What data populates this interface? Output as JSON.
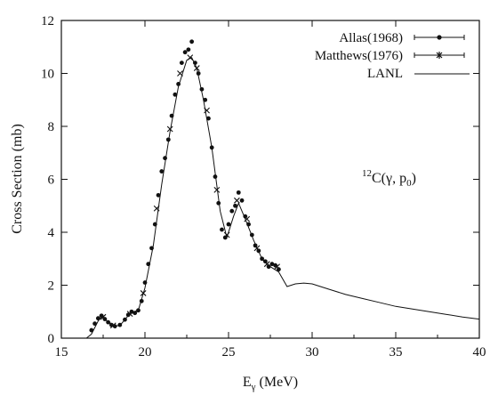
{
  "chart_data": {
    "type": "scatter",
    "xlabel": "E",
    "xlabel_sub": "γ",
    "xlabel_unit": " (MeV)",
    "ylabel": "Cross Section (mb)",
    "xlim": [
      15,
      40
    ],
    "ylim": [
      0,
      12
    ],
    "xticks": [
      15,
      20,
      25,
      30,
      35,
      40
    ],
    "yticks": [
      0,
      2,
      4,
      6,
      8,
      10,
      12
    ],
    "grid": false,
    "legend_position": "top-right",
    "annotation": {
      "mass_number": "12",
      "text": "C(γ, p",
      "sub": "0",
      "close": ")"
    },
    "series": [
      {
        "name": "Allas(1968)",
        "marker": "dot",
        "values": [
          [
            16.8,
            0.3
          ],
          [
            17.0,
            0.55
          ],
          [
            17.2,
            0.75
          ],
          [
            17.4,
            0.85
          ],
          [
            17.6,
            0.72
          ],
          [
            17.8,
            0.6
          ],
          [
            18.0,
            0.5
          ],
          [
            18.2,
            0.45
          ],
          [
            18.5,
            0.5
          ],
          [
            18.8,
            0.7
          ],
          [
            19.0,
            0.88
          ],
          [
            19.2,
            1.0
          ],
          [
            19.4,
            0.95
          ],
          [
            19.6,
            1.05
          ],
          [
            19.8,
            1.4
          ],
          [
            20.0,
            2.1
          ],
          [
            20.2,
            2.8
          ],
          [
            20.4,
            3.4
          ],
          [
            20.6,
            4.3
          ],
          [
            20.8,
            5.4
          ],
          [
            21.0,
            6.3
          ],
          [
            21.2,
            6.8
          ],
          [
            21.4,
            7.5
          ],
          [
            21.6,
            8.4
          ],
          [
            21.8,
            9.2
          ],
          [
            22.0,
            9.6
          ],
          [
            22.2,
            10.4
          ],
          [
            22.4,
            10.8
          ],
          [
            22.6,
            10.9
          ],
          [
            22.8,
            11.2
          ],
          [
            23.0,
            10.4
          ],
          [
            23.2,
            10.0
          ],
          [
            23.4,
            9.4
          ],
          [
            23.6,
            9.0
          ],
          [
            23.8,
            8.3
          ],
          [
            24.0,
            7.2
          ],
          [
            24.2,
            6.1
          ],
          [
            24.4,
            5.1
          ],
          [
            24.6,
            4.1
          ],
          [
            24.8,
            3.8
          ],
          [
            25.0,
            4.3
          ],
          [
            25.2,
            4.8
          ],
          [
            25.4,
            5.0
          ],
          [
            25.6,
            5.5
          ],
          [
            25.8,
            5.2
          ],
          [
            26.0,
            4.6
          ],
          [
            26.2,
            4.3
          ],
          [
            26.4,
            3.9
          ],
          [
            26.6,
            3.5
          ],
          [
            26.8,
            3.3
          ],
          [
            27.0,
            3.0
          ],
          [
            27.2,
            2.9
          ],
          [
            27.4,
            2.7
          ],
          [
            27.6,
            2.8
          ],
          [
            27.8,
            2.75
          ],
          [
            28.0,
            2.6
          ]
        ]
      },
      {
        "name": "Matthews(1976)",
        "marker": "cross",
        "values": [
          [
            17.5,
            0.8
          ],
          [
            18.1,
            0.48
          ],
          [
            19.1,
            0.92
          ],
          [
            19.9,
            1.7
          ],
          [
            20.7,
            4.9
          ],
          [
            21.5,
            7.9
          ],
          [
            22.1,
            10.0
          ],
          [
            22.7,
            10.6
          ],
          [
            23.1,
            10.2
          ],
          [
            23.7,
            8.6
          ],
          [
            24.3,
            5.6
          ],
          [
            24.9,
            3.9
          ],
          [
            25.5,
            5.2
          ],
          [
            26.1,
            4.5
          ],
          [
            26.7,
            3.4
          ],
          [
            27.3,
            2.8
          ],
          [
            27.9,
            2.7
          ]
        ]
      },
      {
        "name": "LANL",
        "marker": "line",
        "values": [
          [
            16.5,
            0.0
          ],
          [
            16.8,
            0.15
          ],
          [
            17.0,
            0.4
          ],
          [
            17.2,
            0.65
          ],
          [
            17.4,
            0.8
          ],
          [
            17.6,
            0.72
          ],
          [
            17.8,
            0.6
          ],
          [
            18.0,
            0.5
          ],
          [
            18.3,
            0.45
          ],
          [
            18.6,
            0.55
          ],
          [
            19.0,
            0.85
          ],
          [
            19.3,
            1.0
          ],
          [
            19.6,
            1.05
          ],
          [
            20.0,
            1.9
          ],
          [
            20.5,
            3.5
          ],
          [
            21.0,
            5.8
          ],
          [
            21.5,
            7.8
          ],
          [
            22.0,
            9.5
          ],
          [
            22.5,
            10.5
          ],
          [
            22.8,
            10.6
          ],
          [
            23.1,
            10.2
          ],
          [
            23.5,
            9.0
          ],
          [
            24.0,
            7.2
          ],
          [
            24.5,
            4.8
          ],
          [
            24.9,
            3.8
          ],
          [
            25.3,
            4.6
          ],
          [
            25.6,
            5.1
          ],
          [
            26.0,
            4.5
          ],
          [
            26.5,
            3.7
          ],
          [
            27.0,
            3.0
          ],
          [
            27.5,
            2.7
          ],
          [
            28.0,
            2.5
          ],
          [
            28.5,
            1.95
          ],
          [
            29.0,
            2.05
          ],
          [
            29.5,
            2.08
          ],
          [
            30.0,
            2.05
          ],
          [
            31.0,
            1.85
          ],
          [
            32.0,
            1.65
          ],
          [
            33.0,
            1.5
          ],
          [
            34.0,
            1.35
          ],
          [
            35.0,
            1.2
          ],
          [
            36.0,
            1.1
          ],
          [
            37.0,
            1.0
          ],
          [
            38.0,
            0.9
          ],
          [
            39.0,
            0.8
          ],
          [
            40.0,
            0.72
          ]
        ]
      }
    ]
  }
}
